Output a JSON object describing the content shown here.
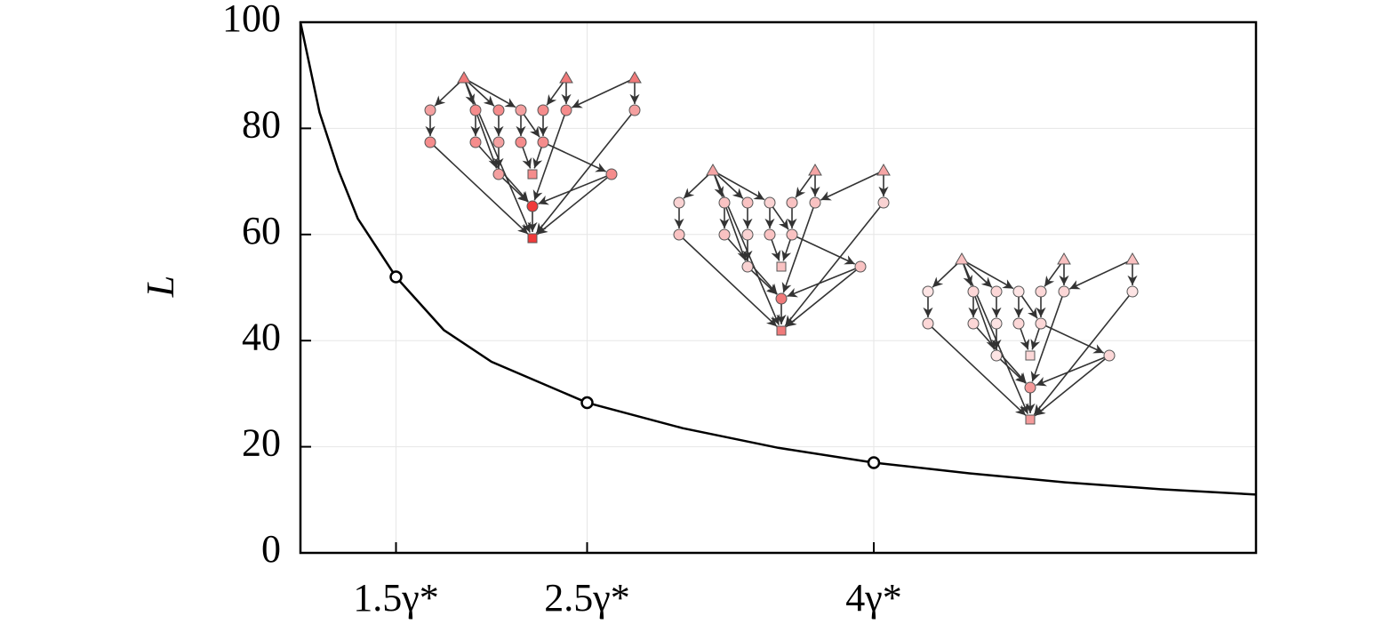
{
  "chart_data": {
    "type": "line",
    "ylabel": "L",
    "x": [
      1.0,
      1.1,
      1.2,
      1.3,
      1.5,
      1.75,
      2.0,
      2.5,
      3.0,
      3.5,
      4.0,
      4.5,
      5.0,
      5.5,
      6.0
    ],
    "series": [
      {
        "color": "#000000",
        "values": [
          100,
          83,
          72,
          63,
          52,
          42,
          36,
          28.3,
          23.5,
          19.8,
          17,
          15,
          13.3,
          12,
          11
        ]
      }
    ],
    "points": {
      "x": [
        1.5,
        2.5,
        4
      ],
      "values": [
        52,
        28.3,
        17
      ]
    },
    "xlim": [
      1,
      6
    ],
    "ylim": [
      0,
      100
    ],
    "xticks": [
      {
        "value": 1.5,
        "label": "1.5γ*"
      },
      {
        "value": 2.5,
        "label": "2.5γ*"
      },
      {
        "value": 4,
        "label": "4γ*"
      }
    ],
    "yticks": [
      0,
      20,
      40,
      60,
      80,
      100
    ],
    "grid": true
  }
}
